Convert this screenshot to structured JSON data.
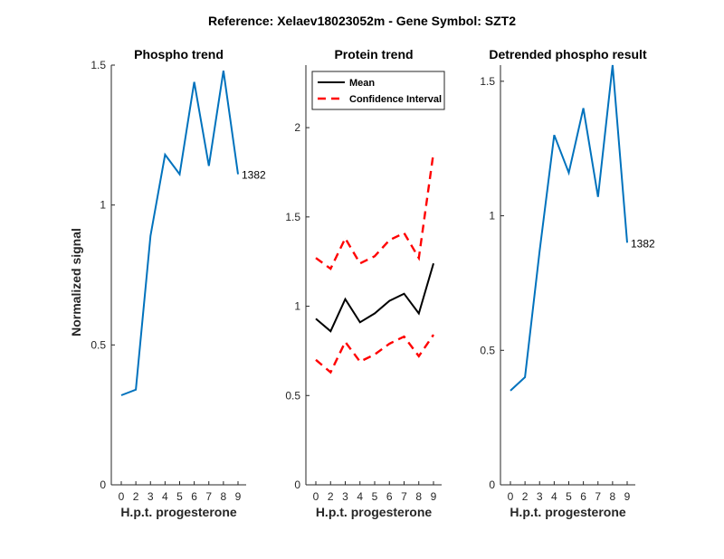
{
  "figure": {
    "title": "Reference:  Xelaev18023052m - Gene Symbol:  SZT2"
  },
  "chart_data": [
    {
      "type": "line",
      "title": "Phospho trend",
      "xlabel": "H.p.t. progesterone",
      "ylabel": "Normalized signal",
      "x_ticks": [
        0,
        2,
        3,
        4,
        5,
        6,
        7,
        8,
        9
      ],
      "y_ticks": [
        "0",
        "0.5",
        "1",
        "1.5"
      ],
      "y_tick_values": [
        0,
        0.5,
        1,
        1.5
      ],
      "ylim": [
        0,
        1.5
      ],
      "series": [
        {
          "color": "#0072BD",
          "dash": "solid",
          "values": [
            0.32,
            0.34,
            0.89,
            1.18,
            1.11,
            1.44,
            1.14,
            1.48,
            1.11
          ]
        }
      ],
      "annotation": {
        "text": "1382",
        "at_index": 8
      }
    },
    {
      "type": "line",
      "title": "Protein trend",
      "xlabel": "H.p.t. progesterone",
      "ylabel": "",
      "x_ticks": [
        0,
        2,
        3,
        4,
        5,
        6,
        7,
        8,
        9
      ],
      "y_ticks": [
        "0",
        "0.5",
        "1",
        "1.5",
        "2"
      ],
      "y_tick_values": [
        0,
        0.5,
        1,
        1.5,
        2
      ],
      "ylim": [
        0,
        2.35
      ],
      "legend": {
        "position": "top-left"
      },
      "series": [
        {
          "name": "Mean",
          "color": "#000000",
          "dash": "solid",
          "in_legend": true,
          "values": [
            0.93,
            0.86,
            1.04,
            0.91,
            0.96,
            1.03,
            1.07,
            0.96,
            1.24
          ]
        },
        {
          "name": "Confidence Interval",
          "color": "#FF0000",
          "dash": "dashed",
          "in_legend": true,
          "values": [
            1.27,
            1.21,
            1.38,
            1.24,
            1.28,
            1.37,
            1.41,
            1.27,
            1.86
          ]
        },
        {
          "name": "Confidence Interval",
          "color": "#FF0000",
          "dash": "dashed",
          "in_legend": false,
          "values": [
            0.7,
            0.63,
            0.8,
            0.69,
            0.73,
            0.79,
            0.83,
            0.72,
            0.84
          ]
        }
      ]
    },
    {
      "type": "line",
      "title": "Detrended phospho result",
      "xlabel": "H.p.t. progesterone",
      "ylabel": "",
      "x_ticks": [
        0,
        2,
        3,
        4,
        5,
        6,
        7,
        8,
        9
      ],
      "y_ticks": [
        "0",
        "0.5",
        "1",
        "1.5"
      ],
      "y_tick_values": [
        0,
        0.5,
        1,
        1.5
      ],
      "ylim": [
        0,
        1.56
      ],
      "series": [
        {
          "color": "#0072BD",
          "dash": "solid",
          "values": [
            0.35,
            0.4,
            0.87,
            1.3,
            1.16,
            1.4,
            1.07,
            1.56,
            0.9
          ]
        }
      ],
      "annotation": {
        "text": "1382",
        "at_index": 8
      }
    }
  ]
}
